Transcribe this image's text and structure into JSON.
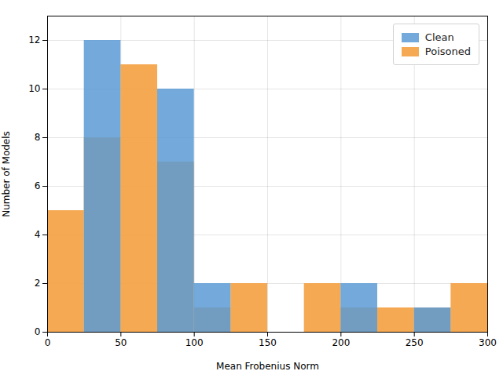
{
  "chart_data": {
    "type": "histogram",
    "xlabel": "Mean Frobenius Norm",
    "ylabel": "Number of Models",
    "bins": [
      0,
      25,
      50,
      75,
      100,
      125,
      150,
      175,
      200,
      225,
      250,
      275,
      300
    ],
    "series": [
      {
        "name": "Clean",
        "color": "#5b9bd5",
        "values": [
          0,
          12,
          0,
          10,
          2,
          0,
          0,
          0,
          2,
          0,
          1,
          0
        ]
      },
      {
        "name": "Poisoned",
        "color": "#f4a040",
        "values": [
          5,
          8,
          11,
          7,
          1,
          2,
          0,
          2,
          1,
          1,
          1,
          2
        ]
      }
    ],
    "xlim": [
      0,
      300
    ],
    "ylim": [
      0,
      13
    ],
    "xticks": [
      0,
      50,
      100,
      150,
      200,
      250,
      300
    ],
    "yticks": [
      0,
      2,
      4,
      6,
      8,
      10,
      12
    ],
    "grid": true,
    "legend": "upper right"
  }
}
